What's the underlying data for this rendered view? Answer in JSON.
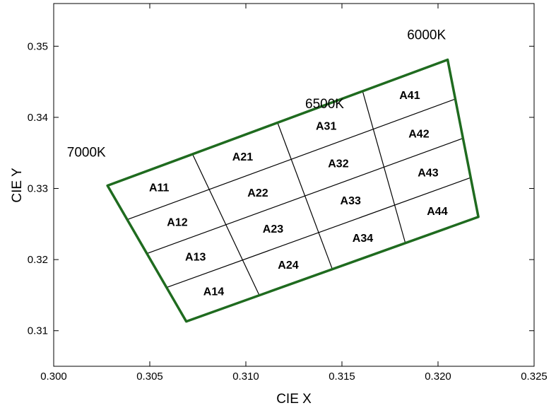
{
  "chart_data": {
    "type": "line",
    "xlabel": "CIE X",
    "ylabel": "CIE Y",
    "xlim": [
      0.3,
      0.325
    ],
    "ylim": [
      0.305,
      0.356
    ],
    "x_ticks": [
      0.3,
      0.305,
      0.31,
      0.315,
      0.32,
      0.325
    ],
    "x_tick_labels": [
      "0.300",
      "0.305",
      "0.310",
      "0.315",
      "0.320",
      "0.325"
    ],
    "y_ticks": [
      0.31,
      0.32,
      0.33,
      0.34,
      0.35
    ],
    "y_tick_labels": [
      "0.31",
      "0.32",
      "0.33",
      "0.34",
      "0.35"
    ],
    "grid": false,
    "boundary_color": "#1f6b1f",
    "divider_color": "#000000",
    "corners": {
      "top_left": [
        0.3028,
        0.3304
      ],
      "top_right": [
        0.3205,
        0.3481
      ],
      "bottom_right": [
        0.3221,
        0.326
      ],
      "bottom_left": [
        0.3069,
        0.3113
      ]
    },
    "cct_labels": [
      {
        "text": "7000K",
        "x": 0.3017,
        "y": 0.3345
      },
      {
        "text": "6500K",
        "x": 0.3141,
        "y": 0.3413
      },
      {
        "text": "6000K",
        "x": 0.3194,
        "y": 0.351
      }
    ],
    "cells": [
      {
        "label": "A11",
        "x": 0.3047,
        "y": 0.3306
      },
      {
        "label": "A12",
        "x": 0.3056,
        "y": 0.3257
      },
      {
        "label": "A13",
        "x": 0.3066,
        "y": 0.3207
      },
      {
        "label": "A14",
        "x": 0.3076,
        "y": 0.3157
      },
      {
        "label": "A21",
        "x": 0.3103,
        "y": 0.3346
      },
      {
        "label": "A22",
        "x": 0.3115,
        "y": 0.3297
      },
      {
        "label": "A23",
        "x": 0.3127,
        "y": 0.3249
      },
      {
        "label": "A24",
        "x": 0.3139,
        "y": 0.3198
      },
      {
        "label": "A31",
        "x": 0.3158,
        "y": 0.3392
      },
      {
        "label": "A32",
        "x": 0.317,
        "y": 0.3337
      },
      {
        "label": "A33",
        "x": 0.3182,
        "y": 0.3284
      },
      {
        "label": "A34",
        "x": 0.3193,
        "y": 0.3232
      },
      {
        "label": "A41",
        "x": 0.3215,
        "y": 0.343
      },
      {
        "label": "A42",
        "x": 0.3228,
        "y": 0.3377
      },
      {
        "label": "A43",
        "x": 0.3241,
        "y": 0.3322
      },
      {
        "label": "A44",
        "x": 0.3253,
        "y": 0.3268
      }
    ]
  }
}
